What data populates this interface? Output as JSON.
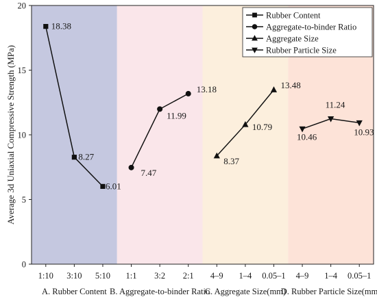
{
  "chart_data": {
    "type": "line",
    "ylabel": "Average 3d Uniaxial Compressive Strength (MPa)",
    "xlabel": "",
    "ylim": [
      0,
      20
    ],
    "yticks": [
      0,
      5,
      10,
      15,
      20
    ],
    "grid": false,
    "legend_position": "top-right",
    "groups": [
      {
        "name": "A. Rubber Content",
        "color": "#c5c8e0",
        "marker": "square",
        "categories": [
          "1:10",
          "3:10",
          "5:10"
        ],
        "values": [
          18.38,
          8.27,
          6.01
        ],
        "value_labels": [
          "18.38",
          "8.27",
          "6.01"
        ]
      },
      {
        "name": "B. Aggregate-to-binder Ratio",
        "color": "#fae6ea",
        "marker": "circle",
        "categories": [
          "1:1",
          "3:2",
          "2:1"
        ],
        "values": [
          7.47,
          11.99,
          13.18
        ],
        "value_labels": [
          "7.47",
          "11.99",
          "13.18"
        ]
      },
      {
        "name": "C. Aggregate Size(mm)",
        "color": "#fcefdd",
        "marker": "triangle-up",
        "categories": [
          "4–9",
          "1–4",
          "0.05–1"
        ],
        "values": [
          8.37,
          10.79,
          13.48
        ],
        "value_labels": [
          "8.37",
          "10.79",
          "13.48"
        ]
      },
      {
        "name": "D. Rubber Particle Size(mm)",
        "color": "#fde3d8",
        "marker": "triangle-down",
        "categories": [
          "4–9",
          "1–4",
          "0.05–1"
        ],
        "values": [
          10.46,
          11.24,
          10.93
        ],
        "value_labels": [
          "10.46",
          "11.24",
          "10.93"
        ]
      }
    ],
    "legend": [
      {
        "label": "Rubber Content",
        "marker": "square"
      },
      {
        "label": "Aggregate-to-binder Ratio",
        "marker": "circle"
      },
      {
        "label": "Aggregate Size",
        "marker": "triangle-up"
      },
      {
        "label": "Rubber Particle Size",
        "marker": "triangle-down"
      }
    ]
  }
}
